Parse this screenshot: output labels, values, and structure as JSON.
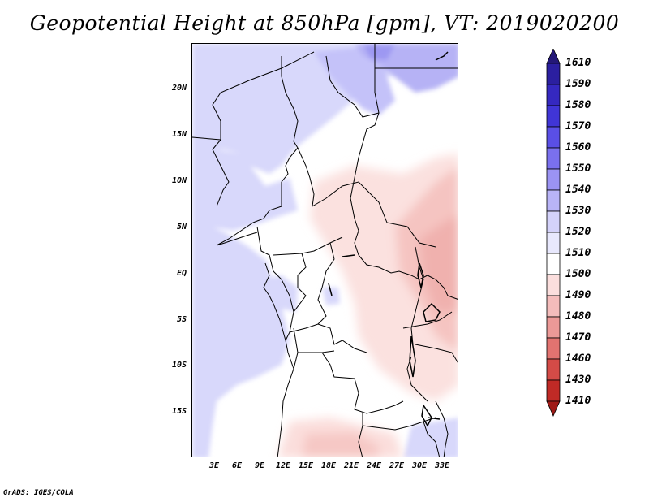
{
  "title": "Geopotential Height at 850hPa [gpm], VT: 2019020200",
  "credit": "GrADS: IGES/COLA",
  "map": {
    "variable": "Geopotential Height",
    "level": "850hPa",
    "units": "gpm",
    "valid_time": "2019020200",
    "lat_ticks": [
      "20N",
      "15N",
      "10N",
      "5N",
      "EQ",
      "5S",
      "10S",
      "15S"
    ],
    "lon_ticks": [
      "3E",
      "6E",
      "9E",
      "12E",
      "15E",
      "18E",
      "21E",
      "24E",
      "27E",
      "30E",
      "33E"
    ],
    "lon_range": [
      0,
      35
    ],
    "lat_range": [
      -20,
      25
    ]
  },
  "colorbar": {
    "levels": [
      "1610",
      "1590",
      "1580",
      "1570",
      "1560",
      "1550",
      "1540",
      "1530",
      "1520",
      "1510",
      "1500",
      "1490",
      "1480",
      "1470",
      "1460",
      "1430",
      "1410"
    ],
    "colors": [
      "#241878",
      "#2b1fa0",
      "#3528c0",
      "#4035d6",
      "#5a4fe6",
      "#7a70ee",
      "#9b93f3",
      "#b9b4f7",
      "#d4d2fa",
      "#e8e8fd",
      "#ffffff",
      "#fbdedd",
      "#f4bcbb",
      "#ec9997",
      "#e27370",
      "#d44b47",
      "#c02a26",
      "#9f1a17"
    ],
    "colors_order": "top-to-bottom"
  }
}
